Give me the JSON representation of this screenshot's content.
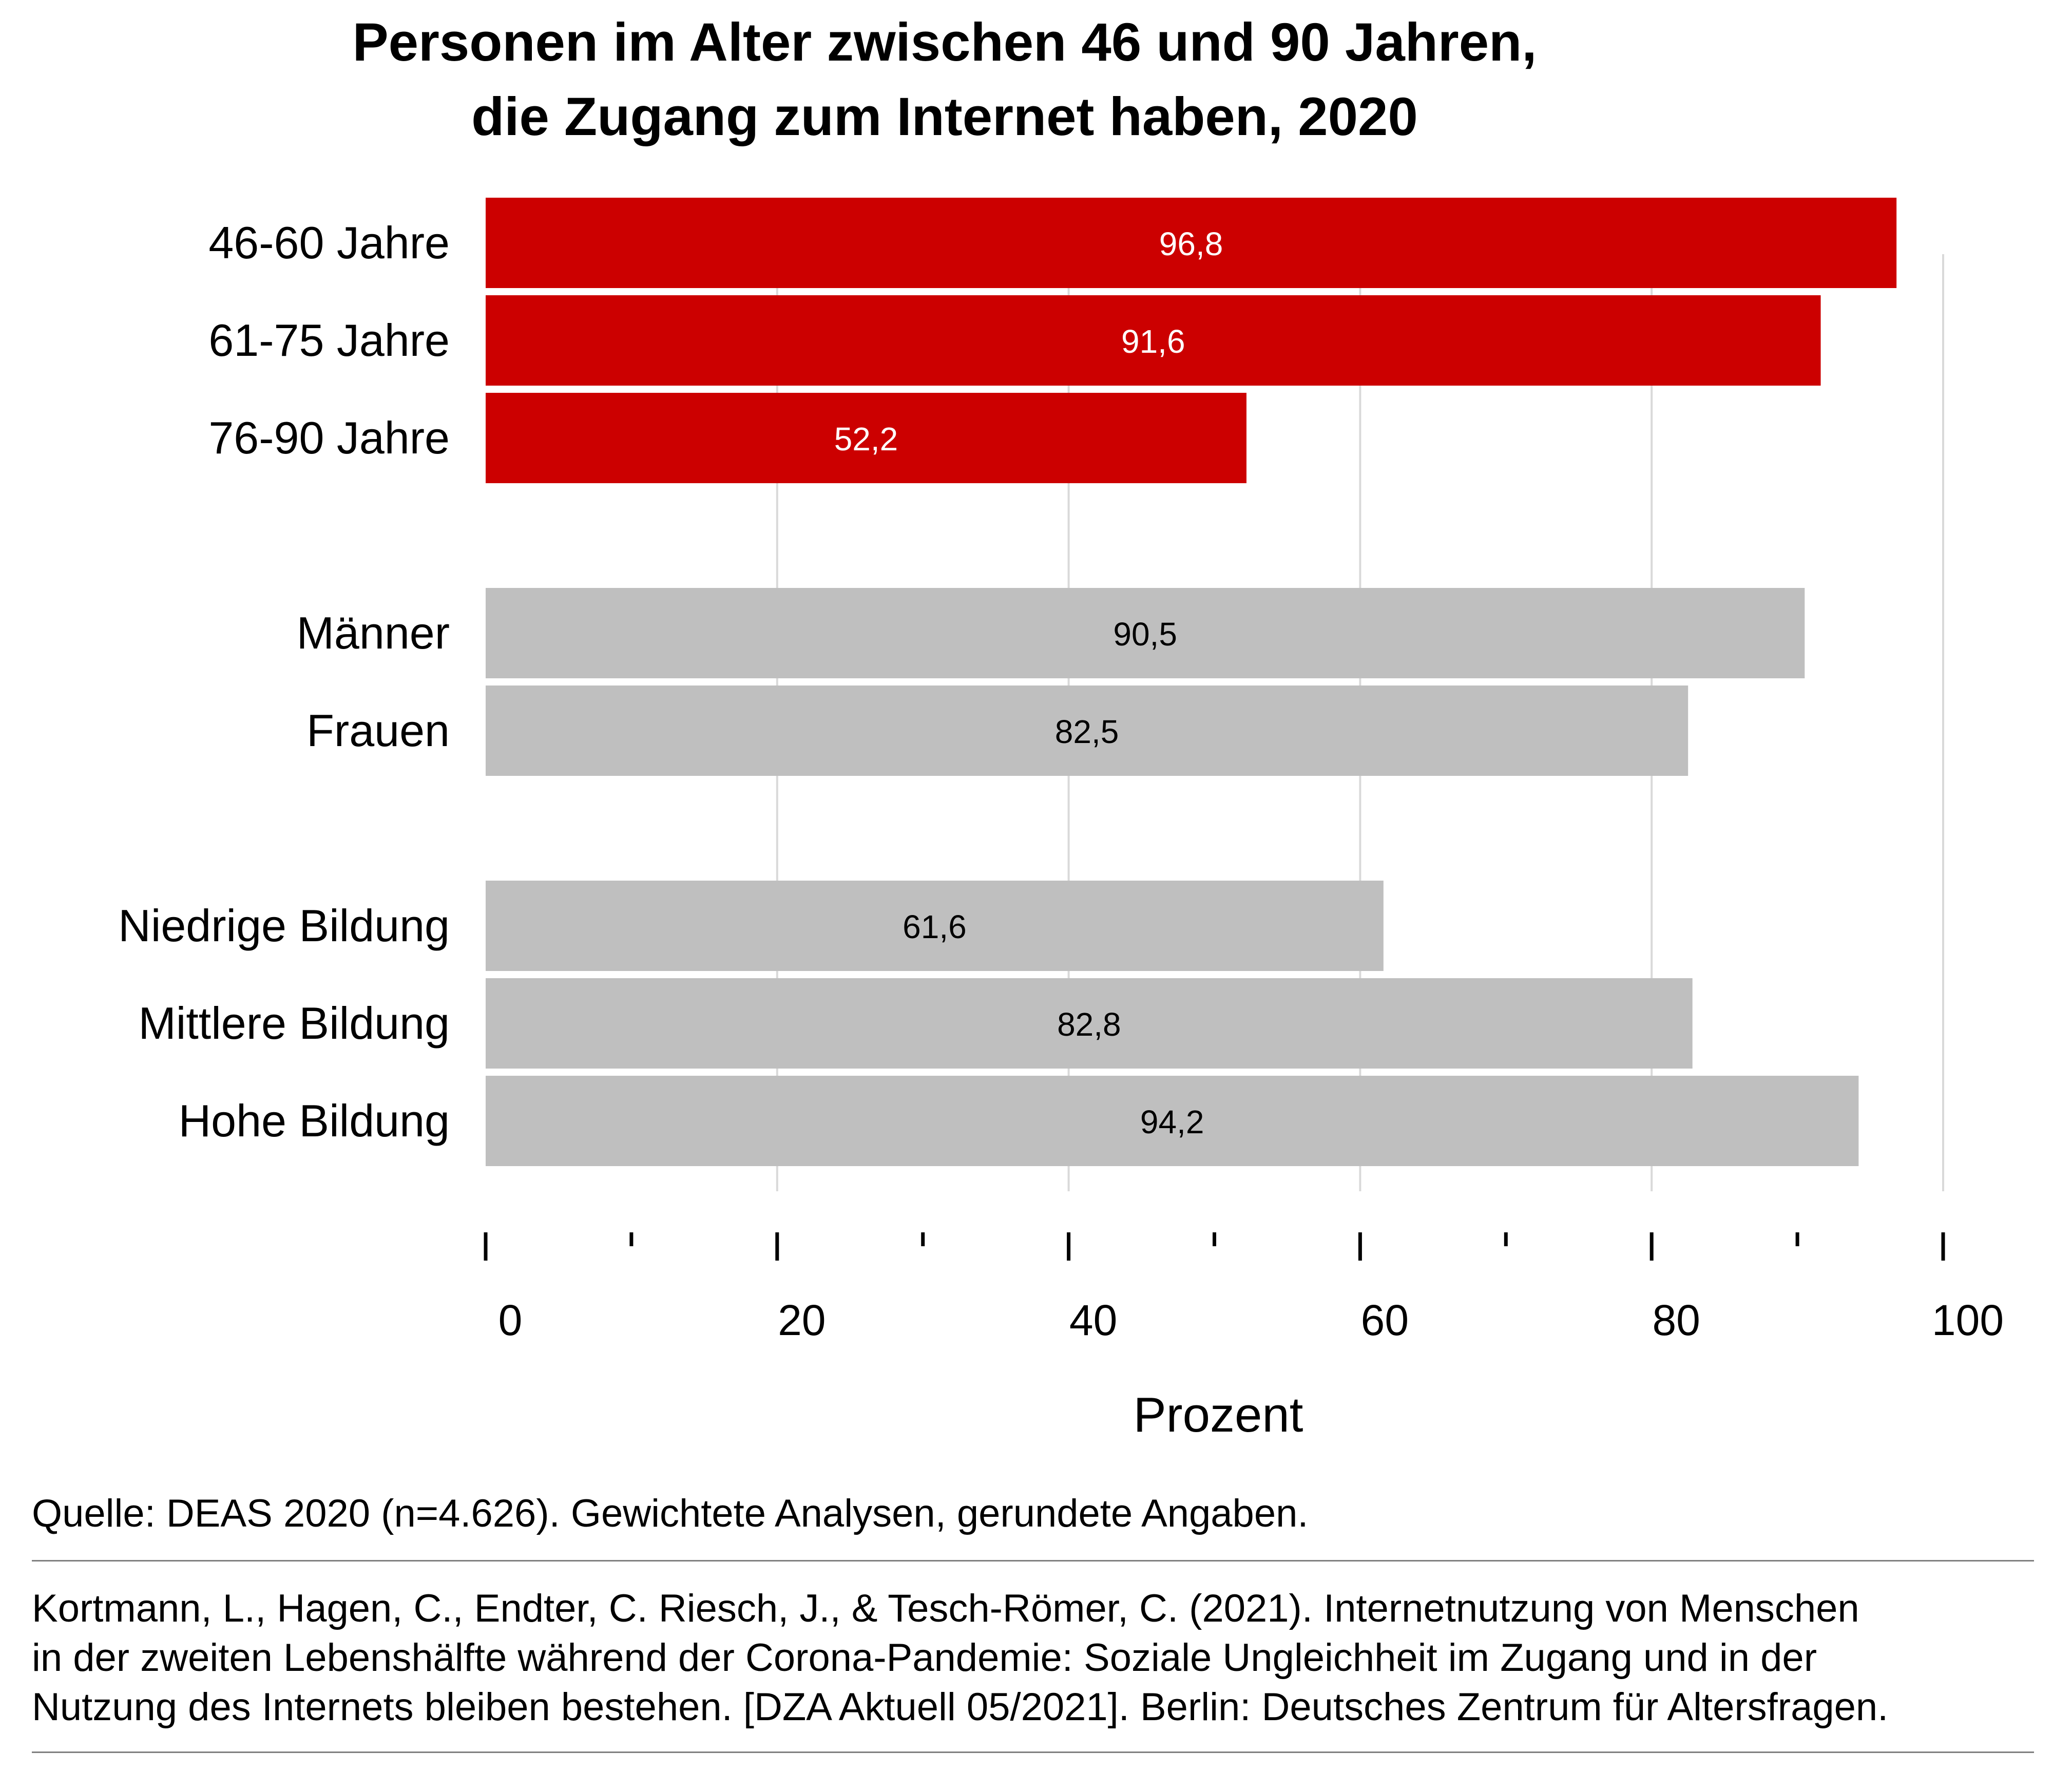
{
  "title": {
    "line1": "Personen im Alter zwischen 46 und 90 Jahren,",
    "line2": "die Zugang zum Internet haben, 2020"
  },
  "colors": {
    "age_bars": "#cc0000",
    "other_bars": "#bfbfbf",
    "age_value_text": "#ffffff",
    "other_value_text": "#000000",
    "gridline": "#d9d9d9"
  },
  "chart_data": {
    "type": "bar",
    "orientation": "horizontal",
    "categories": [
      "46-60 Jahre",
      "61-75 Jahre",
      "76-90 Jahre",
      "Männer",
      "Frauen",
      "Niedrige Bildung",
      "Mittlere Bildung",
      "Hohe Bildung"
    ],
    "values": [
      96.8,
      91.6,
      52.2,
      90.5,
      82.5,
      61.6,
      82.8,
      94.2
    ],
    "value_labels": [
      "96,8",
      "91,6",
      "52,2",
      "90,5",
      "82,5",
      "61,6",
      "82,8",
      "94,2"
    ],
    "groups": [
      {
        "categories": [
          "46-60 Jahre",
          "61-75 Jahre",
          "76-90 Jahre"
        ],
        "color": "#cc0000"
      },
      {
        "categories": [
          "Männer",
          "Frauen"
        ],
        "color": "#bfbfbf"
      },
      {
        "categories": [
          "Niedrige Bildung",
          "Mittlere Bildung",
          "Hohe Bildung"
        ],
        "color": "#bfbfbf"
      }
    ],
    "xlabel": "Prozent",
    "xlim": [
      0,
      100
    ],
    "x_ticks": [
      "0",
      "20",
      "40",
      "60",
      "80",
      "100"
    ],
    "minor_tick_step": 10,
    "grid": true
  },
  "footer": {
    "source": "Quelle: DEAS 2020 (n=4.626). Gewichtete Analysen, gerundete Angaben.",
    "citation": [
      "Kortmann, L., Hagen, C., Endter, C. Riesch, J., & Tesch-Römer, C. (2021). Internetnutzung von Menschen",
      "in der zweiten Lebenshälfte während der Corona-Pandemie: Soziale Ungleichheit im Zugang und in der",
      "Nutzung des Internets bleiben bestehen. [DZA Aktuell 05/2021]. Berlin: Deutsches Zentrum für Altersfragen."
    ]
  }
}
